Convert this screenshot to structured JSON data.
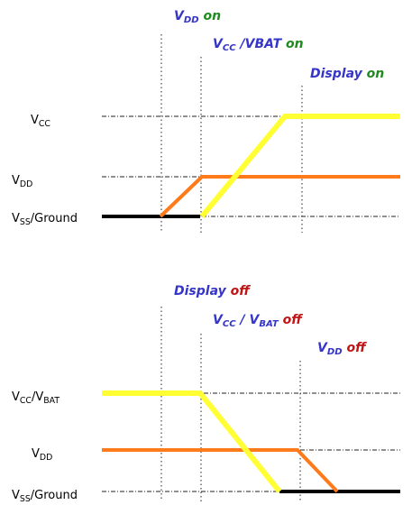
{
  "colors": {
    "blue": "#3535c8",
    "green": "#1f8a1f",
    "red": "#c01515",
    "yellow": "#ffff33",
    "orange": "#ff7a1a",
    "black": "#000000",
    "guide": "#222222"
  },
  "power_on": {
    "annotations": [
      {
        "parts": [
          {
            "text": "V",
            "color": "blue"
          },
          {
            "text": "DD",
            "color": "blue",
            "sub": true
          },
          {
            "text": " on",
            "color": "green"
          }
        ]
      },
      {
        "parts": [
          {
            "text": "V",
            "color": "blue"
          },
          {
            "text": "CC",
            "color": "blue",
            "sub": true
          },
          {
            "text": " /VBAT",
            "color": "blue"
          },
          {
            "text": " on",
            "color": "green"
          }
        ]
      },
      {
        "parts": [
          {
            "text": "Display",
            "color": "blue"
          },
          {
            "text": " on",
            "color": "green"
          }
        ]
      }
    ],
    "rails": [
      {
        "parts": [
          {
            "text": "V"
          },
          {
            "text": "CC",
            "sub": true
          }
        ]
      },
      {
        "parts": [
          {
            "text": "V"
          },
          {
            "text": "DD",
            "sub": true
          }
        ]
      },
      {
        "parts": [
          {
            "text": "V"
          },
          {
            "text": "SS",
            "sub": true
          },
          {
            "text": "/Ground"
          }
        ]
      }
    ]
  },
  "power_off": {
    "annotations": [
      {
        "parts": [
          {
            "text": "Display",
            "color": "blue"
          },
          {
            "text": " off",
            "color": "red"
          }
        ]
      },
      {
        "parts": [
          {
            "text": "V",
            "color": "blue"
          },
          {
            "text": "CC",
            "color": "blue",
            "sub": true
          },
          {
            "text": " / V",
            "color": "blue"
          },
          {
            "text": "BAT",
            "color": "blue",
            "sub": true
          },
          {
            "text": " off",
            "color": "red"
          }
        ]
      },
      {
        "parts": [
          {
            "text": "V",
            "color": "blue"
          },
          {
            "text": "DD",
            "color": "blue",
            "sub": true
          },
          {
            "text": " off",
            "color": "red"
          }
        ]
      }
    ],
    "rails": [
      {
        "parts": [
          {
            "text": "V"
          },
          {
            "text": "CC",
            "sub": true
          },
          {
            "text": "/V"
          },
          {
            "text": "BAT",
            "sub": true
          }
        ]
      },
      {
        "parts": [
          {
            "text": "V"
          },
          {
            "text": "DD",
            "sub": true
          }
        ]
      },
      {
        "parts": [
          {
            "text": "V"
          },
          {
            "text": "SS",
            "sub": true
          },
          {
            "text": "/Ground"
          }
        ]
      }
    ]
  }
}
